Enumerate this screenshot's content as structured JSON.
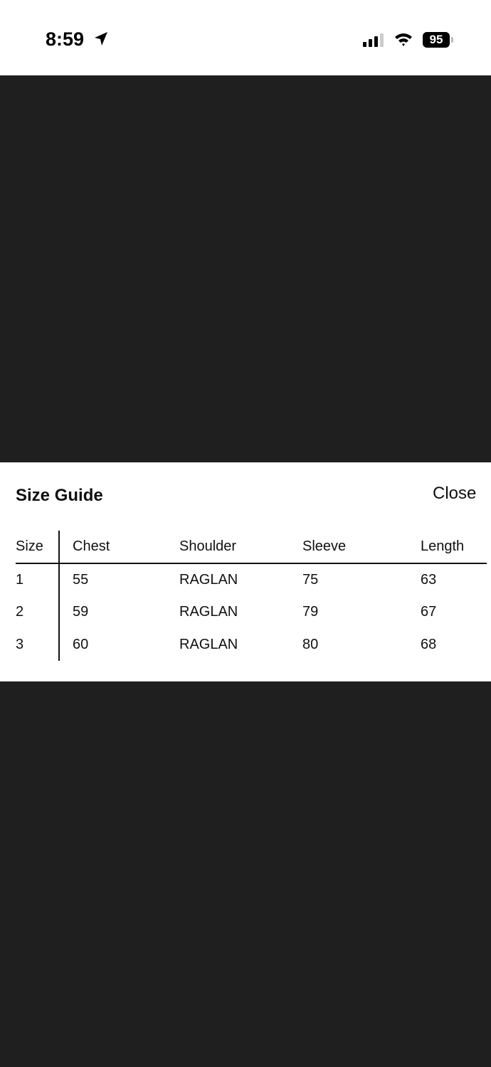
{
  "status_bar": {
    "time": "8:59",
    "battery": "95"
  },
  "size_guide": {
    "title": "Size Guide",
    "close_label": "Close",
    "columns": [
      "Size",
      "Chest",
      "Shoulder",
      "Sleeve",
      "Length"
    ],
    "rows": [
      [
        "1",
        "55",
        "RAGLAN",
        "75",
        "63"
      ],
      [
        "2",
        "59",
        "RAGLAN",
        "79",
        "67"
      ],
      [
        "3",
        "60",
        "RAGLAN",
        "80",
        "68"
      ]
    ]
  }
}
